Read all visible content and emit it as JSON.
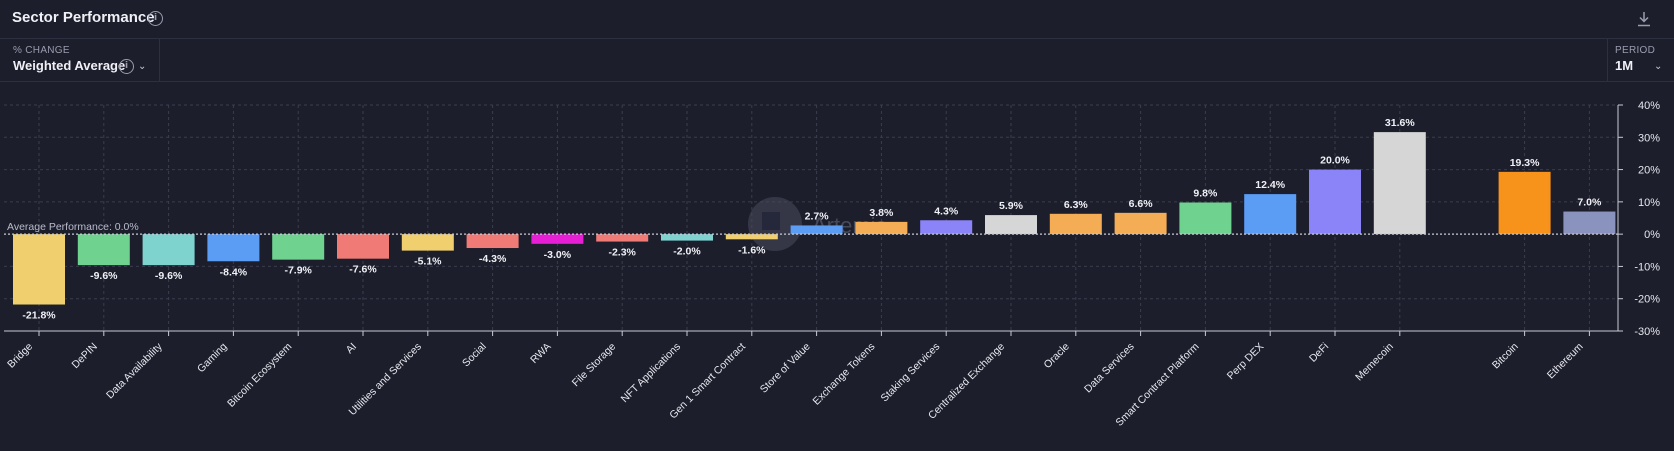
{
  "header": {
    "title": "Sector Performance"
  },
  "controls": {
    "change_label": "% CHANGE",
    "change_value": "Weighted Average",
    "period_label": "PERIOD",
    "period_value": "1M"
  },
  "watermark": "Artemis",
  "chart_data": {
    "type": "bar",
    "categories": [
      "Bridge",
      "DePIN",
      "Data Availability",
      "Gaming",
      "Bitcoin Ecosystem",
      "AI",
      "Utilities and Services",
      "Social",
      "RWA",
      "File Storage",
      "NFT Applications",
      "Gen 1 Smart Contract",
      "Store of Value",
      "Exchange Tokens",
      "Staking Services",
      "Centralized Exchange",
      "Oracle",
      "Data Services",
      "Smart Contract Platform",
      "Perp DEX",
      "DeFi",
      "Memecoin",
      "Bitcoin",
      "Ethereum"
    ],
    "values": [
      -21.8,
      -9.6,
      -9.6,
      -8.4,
      -7.9,
      -7.6,
      -5.1,
      -4.3,
      -3.0,
      -2.3,
      -2.0,
      -1.6,
      2.7,
      3.8,
      4.3,
      5.9,
      6.3,
      6.6,
      9.8,
      12.4,
      20.0,
      31.6,
      19.3,
      7.0
    ],
    "value_labels": [
      "-21.8%",
      "-9.6%",
      "-9.6%",
      "-8.4%",
      "-7.9%",
      "-7.6%",
      "-5.1%",
      "-4.3%",
      "-3.0%",
      "-2.3%",
      "-2.0%",
      "-1.6%",
      "2.7%",
      "3.8%",
      "4.3%",
      "5.9%",
      "6.3%",
      "6.6%",
      "9.8%",
      "12.4%",
      "20.0%",
      "31.6%",
      "19.3%",
      "7.0%"
    ],
    "colors": [
      "#f0cf6e",
      "#6fd28f",
      "#7fd3cf",
      "#5b9cf5",
      "#6fd28f",
      "#f07b76",
      "#f0cf6e",
      "#f07b76",
      "#e61fd4",
      "#f07b76",
      "#7fd3cf",
      "#f0cf6e",
      "#5b9cf5",
      "#f5ad55",
      "#8b84f8",
      "#d6d6d6",
      "#f5ad55",
      "#f5ad55",
      "#6fd28f",
      "#5b9cf5",
      "#8b84f8",
      "#d6d6d6",
      "#f7931a",
      "#8a93bd"
    ],
    "ylim": [
      -30,
      40
    ],
    "yticks": [
      40,
      30,
      20,
      10,
      0,
      -10,
      -20,
      -30
    ],
    "ytick_labels": [
      "40%",
      "30%",
      "20%",
      "10%",
      "0%",
      "-10%",
      "-20%",
      "-30%"
    ],
    "average": {
      "label": "Average Performance: 0.0%",
      "value": 0.0
    },
    "grid": true
  }
}
